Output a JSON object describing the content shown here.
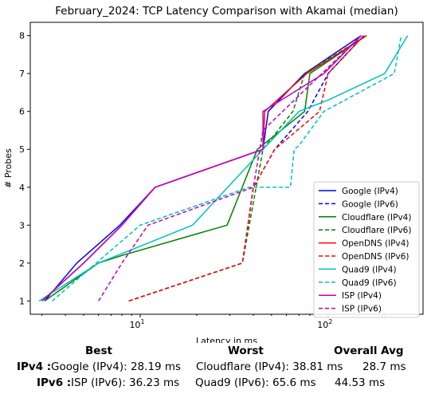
{
  "chart_data": {
    "type": "line",
    "title": "February_2024: TCP Latency Comparison with Akamai (median)",
    "xlabel": "Latency in ms",
    "ylabel": "# Probes",
    "xscale": "log",
    "xlim": [
      2.6,
      320
    ],
    "ylim": [
      0.65,
      8.35
    ],
    "xticks": [
      10,
      100
    ],
    "xtick_labels": [
      "$10^1$",
      "$10^2$"
    ],
    "yticks": [
      1,
      2,
      3,
      4,
      5,
      6,
      7,
      8
    ],
    "legend_position": "lower-right",
    "grid": false,
    "series": [
      {
        "name": "Google (IPv4)",
        "color": "#0000ff",
        "dash": "solid",
        "x": [
          3.1,
          4.6,
          7.8,
          12.0,
          45.0,
          48.0,
          75.0,
          150.0
        ],
        "y": [
          1,
          2,
          3,
          4,
          5,
          6,
          7,
          8
        ]
      },
      {
        "name": "Google (IPv6)",
        "color": "#0000ff",
        "dash": "dashed",
        "x": [
          8.7,
          35.0,
          40.0,
          52.0,
          78.0,
          100.0,
          155.0
        ],
        "y": [
          1,
          2,
          4,
          5,
          6,
          7,
          8
        ]
      },
      {
        "name": "Cloudflare (IPv4)",
        "color": "#008000",
        "dash": "solid",
        "x": [
          3.1,
          6.0,
          8.0,
          29.0,
          42.0,
          75.0,
          80.0,
          160.0
        ],
        "y": [
          1,
          2,
          2.2,
          3,
          5,
          6,
          7,
          8
        ]
      },
      {
        "name": "Cloudflare (IPv6)",
        "color": "#008000",
        "dash": "dashed",
        "x": [
          8.7,
          35.0,
          45.0,
          65.0,
          75.0,
          160.0
        ],
        "y": [
          1,
          2,
          5,
          6,
          7,
          8
        ]
      },
      {
        "name": "OpenDNS (IPv4)",
        "color": "#ff0000",
        "dash": "solid",
        "x": [
          3.0,
          5.0,
          8.0,
          12.0,
          45.0,
          46.0,
          77.0,
          160.0
        ],
        "y": [
          1,
          2,
          3,
          4,
          5,
          6,
          7,
          8
        ]
      },
      {
        "name": "OpenDNS (IPv6)",
        "color": "#ff0000",
        "dash": "dashed",
        "x": [
          8.7,
          35.0,
          40.0,
          52.0,
          90.0,
          100.0,
          155.0
        ],
        "y": [
          1,
          2,
          4,
          5,
          6,
          7,
          8
        ]
      },
      {
        "name": "Quad9 (IPv4)",
        "color": "#00bfbf",
        "dash": "solid",
        "x": [
          2.9,
          6.0,
          19.0,
          45.0,
          70.0,
          100.0,
          200.0,
          265.0
        ],
        "y": [
          1,
          2,
          3,
          5,
          6,
          6.3,
          7,
          8
        ]
      },
      {
        "name": "Quad9 (IPv6)",
        "color": "#00bfbf",
        "dash": "dashed",
        "x": [
          3.4,
          10.0,
          38.0,
          63.0,
          66.0,
          70.0,
          95.0,
          225.0,
          245.0
        ],
        "y": [
          1,
          3,
          4,
          4,
          5,
          5.1,
          6,
          7,
          8
        ]
      },
      {
        "name": "ISP (IPv4)",
        "color": "#bf00bf",
        "dash": "solid",
        "x": [
          3.0,
          5.0,
          8.0,
          12.0,
          45.0,
          45.0,
          95.0,
          150.0
        ],
        "y": [
          1,
          2,
          3,
          4,
          5,
          6,
          7,
          8
        ]
      },
      {
        "name": "ISP (IPv6)",
        "color": "#bf00bf",
        "dash": "dashed",
        "x": [
          6.0,
          8.0,
          11.0,
          40.0,
          45.0,
          150.0
        ],
        "y": [
          1,
          2,
          3,
          4,
          5.5,
          8
        ]
      }
    ]
  },
  "summary": {
    "headers": [
      "Best",
      "Worst",
      "Overall Avg"
    ],
    "rows": [
      {
        "label": "IPv4 :",
        "best": "Google (IPv4): 28.19 ms",
        "worst": "Cloudflare (IPv4): 38.81 ms",
        "avg": "28.7 ms"
      },
      {
        "label": "IPv6 :",
        "best": "ISP (IPv6): 36.23 ms",
        "worst": "Quad9 (IPv6): 65.6 ms",
        "avg": "44.53 ms"
      }
    ]
  }
}
